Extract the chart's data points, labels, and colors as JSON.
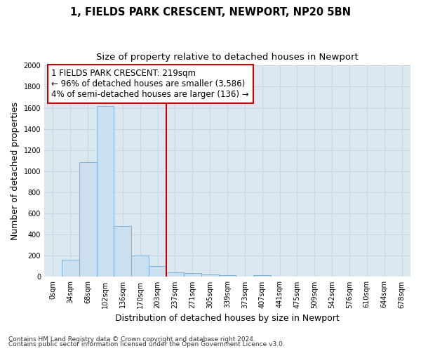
{
  "title1": "1, FIELDS PARK CRESCENT, NEWPORT, NP20 5BN",
  "title2": "Size of property relative to detached houses in Newport",
  "xlabel": "Distribution of detached houses by size in Newport",
  "ylabel": "Number of detached properties",
  "footer1": "Contains HM Land Registry data © Crown copyright and database right 2024.",
  "footer2": "Contains public sector information licensed under the Open Government Licence v3.0.",
  "annotation_line1": "1 FIELDS PARK CRESCENT: 219sqm",
  "annotation_line2": "← 96% of detached houses are smaller (3,586)",
  "annotation_line3": "4% of semi-detached houses are larger (136) →",
  "bar_categories": [
    "0sqm",
    "34sqm",
    "68sqm",
    "102sqm",
    "136sqm",
    "170sqm",
    "203sqm",
    "237sqm",
    "271sqm",
    "305sqm",
    "339sqm",
    "373sqm",
    "407sqm",
    "441sqm",
    "475sqm",
    "509sqm",
    "542sqm",
    "576sqm",
    "610sqm",
    "644sqm",
    "678sqm"
  ],
  "bar_values": [
    0,
    165,
    1085,
    1620,
    480,
    200,
    100,
    45,
    35,
    20,
    15,
    0,
    15,
    0,
    0,
    0,
    0,
    0,
    0,
    0,
    0
  ],
  "vline_x": 6.5,
  "ylim": [
    0,
    2000
  ],
  "yticks": [
    0,
    200,
    400,
    600,
    800,
    1000,
    1200,
    1400,
    1600,
    1800,
    2000
  ],
  "bar_face_color": "#ccdff0",
  "bar_edge_color": "#6aaed6",
  "vline_color": "#cc0000",
  "grid_color": "#c8d4e0",
  "bg_color": "#dce8f0",
  "title_fontsize": 10.5,
  "subtitle_fontsize": 9.5,
  "axis_label_fontsize": 9,
  "tick_fontsize": 7,
  "annotation_fontsize": 8.5,
  "footer_fontsize": 6.5
}
